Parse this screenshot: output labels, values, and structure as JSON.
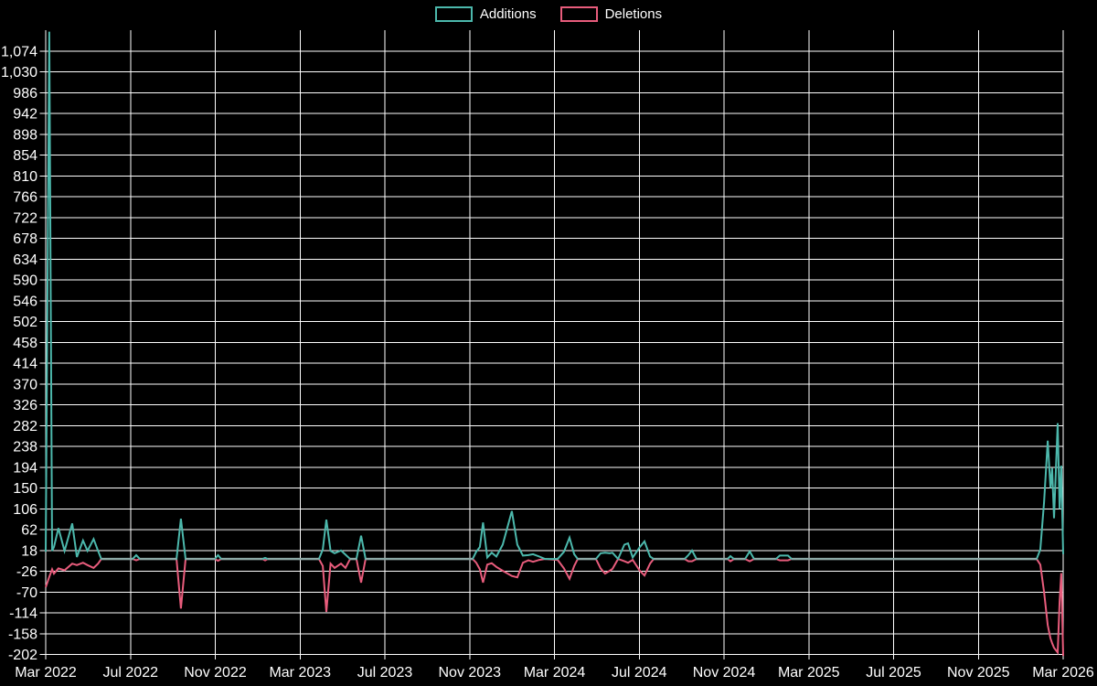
{
  "legend": {
    "items": [
      {
        "label": "Additions",
        "color": "#4cb8ac"
      },
      {
        "label": "Deletions",
        "color": "#e85c7c"
      }
    ]
  },
  "colors": {
    "background": "#000000",
    "grid": "#ffffff",
    "axis_text": "#ffffff",
    "additions": "#4cb8ac",
    "deletions": "#e85c7c",
    "zero_overlap_line": "#8ca8a6"
  },
  "chart_data": {
    "type": "line",
    "title": "",
    "xlabel": "",
    "ylabel": "",
    "legend_position": "top-center",
    "grid": true,
    "x_axis": {
      "start_label": "Mar 2022",
      "tick_labels": [
        "Mar 2022",
        "Jul 2022",
        "Nov 2022",
        "Mar 2023",
        "Jul 2023",
        "Nov 2023",
        "Mar 2024",
        "Jul 2024",
        "Nov 2024",
        "Mar 2025",
        "Jul 2025",
        "Nov 2025",
        "Mar 2026"
      ],
      "tick_positions_months": [
        0,
        4,
        8,
        12,
        16,
        20,
        24,
        28,
        32,
        36,
        40,
        44,
        48
      ]
    },
    "y_axis": {
      "min": -202,
      "max": 1074,
      "step": 44,
      "top_padding_value": 1118,
      "tick_labels": [
        "1,074",
        "1,030",
        "986",
        "942",
        "898",
        "854",
        "810",
        "766",
        "722",
        "678",
        "634",
        "590",
        "546",
        "502",
        "458",
        "414",
        "370",
        "326",
        "282",
        "238",
        "194",
        "150",
        "106",
        "62",
        "18",
        "-26",
        "-70",
        "-114",
        "-158",
        "-202"
      ],
      "tick_values": [
        1074,
        1030,
        986,
        942,
        898,
        854,
        810,
        766,
        722,
        678,
        634,
        590,
        546,
        502,
        458,
        414,
        370,
        326,
        282,
        238,
        194,
        150,
        106,
        62,
        18,
        -26,
        -70,
        -114,
        -158,
        -202
      ]
    },
    "x_months_since_start": [
      0,
      0.17,
      0.3,
      0.39,
      0.6,
      0.89,
      1.25,
      1.47,
      1.76,
      1.97,
      2.26,
      2.47,
      2.62,
      4.1,
      4.27,
      4.44,
      6.17,
      6.38,
      6.6,
      7.98,
      8.13,
      8.28,
      10.22,
      10.35,
      10.48,
      12.89,
      13.07,
      13.24,
      13.44,
      13.63,
      13.93,
      14.14,
      14.36,
      14.66,
      14.88,
      15.09,
      20.14,
      20.31,
      20.48,
      20.63,
      20.83,
      21.04,
      21.26,
      21.56,
      21.99,
      22.25,
      22.51,
      22.77,
      22.99,
      23.29,
      23.55,
      24.15,
      24.45,
      24.71,
      24.93,
      25.1,
      25.96,
      26.18,
      26.39,
      26.61,
      26.74,
      27.0,
      27.3,
      27.47,
      27.69,
      28.03,
      28.25,
      28.51,
      28.68,
      30.14,
      30.32,
      30.49,
      30.7,
      32.17,
      32.3,
      32.47,
      32.99,
      33.21,
      33.42,
      34.45,
      34.63,
      35.02,
      35.19,
      46.75,
      46.92,
      47.1,
      47.27,
      47.4,
      47.48,
      47.57,
      47.74,
      47.83,
      47.91,
      48
    ],
    "series": [
      {
        "name": "Additions",
        "color": "#4cb8ac",
        "values": [
          15,
          1115,
          17,
          25,
          65,
          17,
          75,
          4,
          39,
          17,
          42,
          17,
          0,
          0,
          8,
          0,
          0,
          85,
          0,
          0,
          8,
          0,
          0,
          2,
          0,
          0,
          20,
          83,
          17,
          12,
          18,
          9,
          0,
          0,
          49,
          0,
          0,
          15,
          25,
          77,
          3,
          13,
          5,
          30,
          101,
          30,
          7,
          8,
          10,
          5,
          0,
          0,
          15,
          45,
          10,
          0,
          0,
          12,
          13,
          12,
          13,
          0,
          30,
          33,
          3,
          25,
          37,
          5,
          0,
          0,
          8,
          18,
          0,
          0,
          6,
          0,
          0,
          16,
          0,
          0,
          7,
          7,
          0,
          0,
          20,
          120,
          250,
          150,
          192,
          86,
          287,
          106,
          197,
          10
        ]
      },
      {
        "name": "Deletions",
        "color": "#e85c7c",
        "values": [
          -60,
          -38,
          -22,
          -31,
          -20,
          -24,
          -10,
          -13,
          -8,
          -13,
          -19,
          -10,
          0,
          0,
          -3,
          0,
          0,
          -105,
          0,
          0,
          -4,
          0,
          0,
          -3,
          0,
          0,
          -15,
          -112,
          -10,
          -19,
          -10,
          -19,
          0,
          0,
          -50,
          0,
          0,
          -8,
          -22,
          -50,
          -12,
          -9,
          -17,
          -25,
          -36,
          -39,
          -8,
          -3,
          -6,
          -2,
          0,
          -2,
          -20,
          -42,
          -15,
          0,
          0,
          -20,
          -31,
          -25,
          -21,
          0,
          -5,
          -8,
          -2,
          -25,
          -35,
          -10,
          0,
          0,
          -5,
          -5,
          0,
          0,
          -5,
          0,
          0,
          -5,
          0,
          0,
          -3,
          -3,
          0,
          0,
          -12,
          -70,
          -140,
          -168,
          -178,
          -188,
          -198,
          -90,
          -30,
          -205
        ]
      }
    ]
  }
}
